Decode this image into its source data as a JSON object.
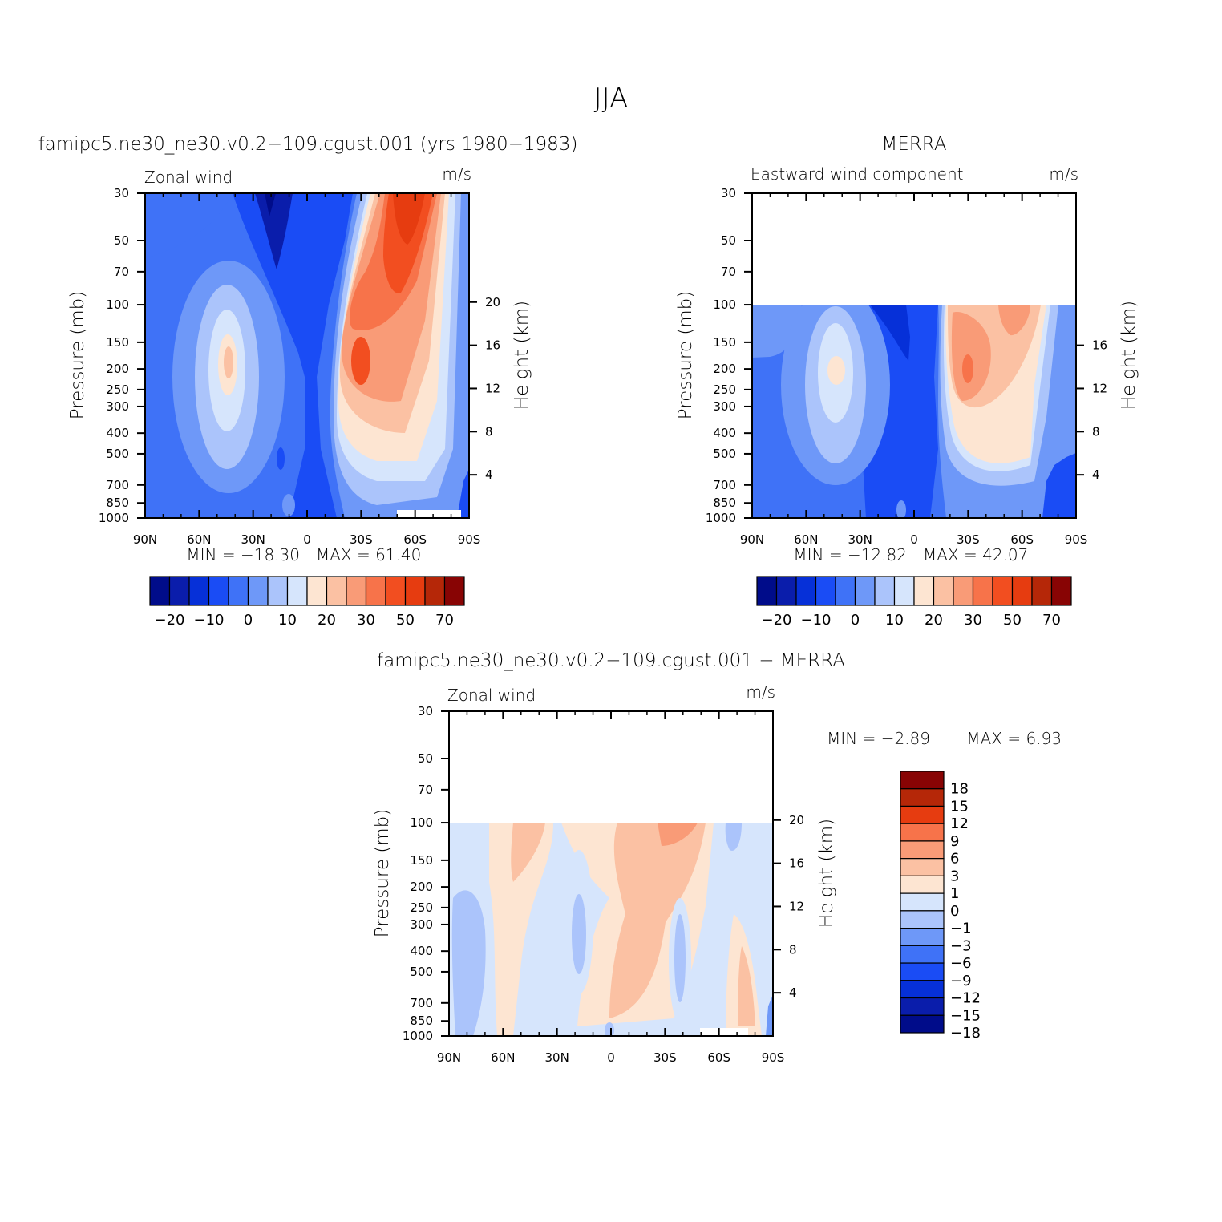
{
  "figure": {
    "title": "JJA"
  },
  "chart_data": [
    {
      "type": "heatmap",
      "id": "model",
      "panel_title": "famipc5.ne30_ne30.v0.2−109.cgust.001 (yrs 1980−1983)",
      "left_string": "Zonal wind",
      "right_string": "m/s",
      "ylabel": "Pressure (mb)",
      "y2label": "Height (km)",
      "x_ticks": [
        "90N",
        "60N",
        "30N",
        "0",
        "30S",
        "60S",
        "90S"
      ],
      "y_ticks": [
        "30",
        "50",
        "70",
        "100",
        "150",
        "200",
        "250",
        "300",
        "400",
        "500",
        "700",
        "850",
        "1000"
      ],
      "y2_ticks": [
        "20",
        "16",
        "12",
        "8",
        "4"
      ],
      "min_label": "MIN = −18.30",
      "max_label": "MAX = 61.40",
      "min": -18.3,
      "max": 61.4,
      "colorbar_ticks": [
        "−20",
        "−10",
        "0",
        "10",
        "20",
        "30",
        "50",
        "70"
      ],
      "data_top_pressure_mb": 30
    },
    {
      "type": "heatmap",
      "id": "obs",
      "panel_title": "MERRA",
      "left_string": "Eastward wind component",
      "right_string": "m/s",
      "ylabel": "Pressure (mb)",
      "y2label": "Height (km)",
      "x_ticks": [
        "90N",
        "60N",
        "30N",
        "0",
        "30S",
        "60S",
        "90S"
      ],
      "y_ticks": [
        "30",
        "50",
        "70",
        "100",
        "150",
        "200",
        "250",
        "300",
        "400",
        "500",
        "700",
        "850",
        "1000"
      ],
      "y2_ticks": [
        "16",
        "12",
        "8",
        "4"
      ],
      "min_label": "MIN = −12.82",
      "max_label": "MAX = 42.07",
      "min": -12.82,
      "max": 42.07,
      "colorbar_ticks": [
        "−20",
        "−10",
        "0",
        "10",
        "20",
        "30",
        "50",
        "70"
      ],
      "data_top_pressure_mb": 100
    },
    {
      "type": "heatmap",
      "id": "diff",
      "panel_title": "famipc5.ne30_ne30.v0.2−109.cgust.001 − MERRA",
      "left_string": "Zonal wind",
      "right_string": "m/s",
      "ylabel": "Pressure (mb)",
      "y2label": "Height (km)",
      "x_ticks": [
        "90N",
        "60N",
        "30N",
        "0",
        "30S",
        "60S",
        "90S"
      ],
      "y_ticks": [
        "30",
        "50",
        "70",
        "100",
        "150",
        "200",
        "250",
        "300",
        "400",
        "500",
        "700",
        "850",
        "1000"
      ],
      "y2_ticks": [
        "20",
        "16",
        "12",
        "8",
        "4"
      ],
      "min_label": "MIN =  −2.89",
      "max_label": "MAX =  6.93",
      "min": -2.89,
      "max": 6.93,
      "colorbar_ticks": [
        "18",
        "15",
        "12",
        "9",
        "6",
        "3",
        "1",
        "0",
        "−1",
        "−3",
        "−6",
        "−9",
        "−12",
        "−15",
        "−18"
      ],
      "data_top_pressure_mb": 100
    }
  ],
  "palette": {
    "levels_main": [
      "#000c8a",
      "#0a1dab",
      "#0630d8",
      "#1a4cf5",
      "#3f72f7",
      "#6e98f8",
      "#abc4fb",
      "#d6e5fc",
      "#fde5d2",
      "#fbc1a3",
      "#f99b77",
      "#f7734a",
      "#f24e20",
      "#e63c10",
      "#b52708",
      "#880404"
    ],
    "levels_diff": [
      "#880404",
      "#b52708",
      "#e63c10",
      "#f7734a",
      "#f99b77",
      "#fbc1a3",
      "#fde5d2",
      "#d6e5fc",
      "#abc4fb",
      "#6e98f8",
      "#3f72f7",
      "#1a4cf5",
      "#0630d8",
      "#0a1dab",
      "#000c8a"
    ]
  }
}
